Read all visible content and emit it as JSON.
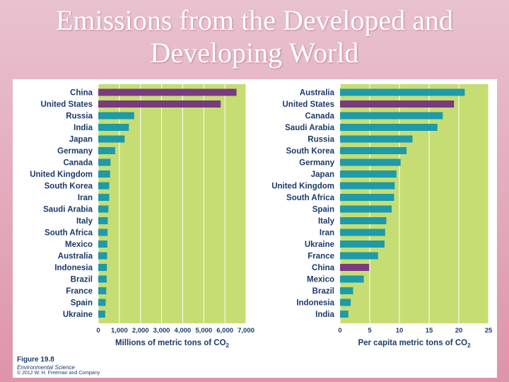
{
  "slide": {
    "title_line1": "Emissions from the Developed and",
    "title_line2": "Developing World"
  },
  "caption": {
    "figure": "Figure 19.8",
    "book": "Environmental Science",
    "copyright": "© 2012 W. H. Freeman and Company"
  },
  "colors": {
    "plot_bg": "#c6dd73",
    "bar": "#1f9aa8",
    "highlight": "#7a3a7e",
    "text": "#1b3a6b"
  },
  "chart_data": [
    {
      "type": "bar",
      "orientation": "horizontal",
      "categories": [
        "China",
        "United States",
        "Russia",
        "India",
        "Japan",
        "Germany",
        "Canada",
        "United Kingdom",
        "South Korea",
        "Iran",
        "Saudi Arabia",
        "Italy",
        "South Africa",
        "Mexico",
        "Australia",
        "Indonesia",
        "Brazil",
        "France",
        "Spain",
        "Ukraine"
      ],
      "values": [
        6550,
        5800,
        1700,
        1450,
        1250,
        800,
        580,
        560,
        520,
        520,
        480,
        450,
        440,
        430,
        420,
        410,
        400,
        380,
        350,
        330
      ],
      "highlight": [
        "China",
        "United States"
      ],
      "xlabel": "Millions of metric tons of CO",
      "xlabel_sub": "2",
      "xlim": [
        0,
        7000
      ],
      "xticks": [
        "0",
        "1,000",
        "2,000",
        "3,000",
        "4,000",
        "5,000",
        "6,000",
        "7,000"
      ]
    },
    {
      "type": "bar",
      "orientation": "horizontal",
      "categories": [
        "Australia",
        "United States",
        "Canada",
        "Saudi Arabia",
        "Russia",
        "South Korea",
        "Germany",
        "Japan",
        "United Kingdom",
        "South Africa",
        "Spain",
        "Italy",
        "Iran",
        "Ukraine",
        "France",
        "China",
        "Mexico",
        "Brazil",
        "Indonesia",
        "India"
      ],
      "values": [
        21,
        19.2,
        17.3,
        16.4,
        12.2,
        11.2,
        10.2,
        9.5,
        9.2,
        9.1,
        8.7,
        7.8,
        7.6,
        7.5,
        6.4,
        4.9,
        4.0,
        2.2,
        1.8,
        1.4
      ],
      "highlight": [
        "United States",
        "China"
      ],
      "xlabel": "Per capita metric tons of CO",
      "xlabel_sub": "2",
      "xlim": [
        0,
        25
      ],
      "xticks": [
        "0",
        "5",
        "10",
        "15",
        "20",
        "25"
      ]
    }
  ]
}
